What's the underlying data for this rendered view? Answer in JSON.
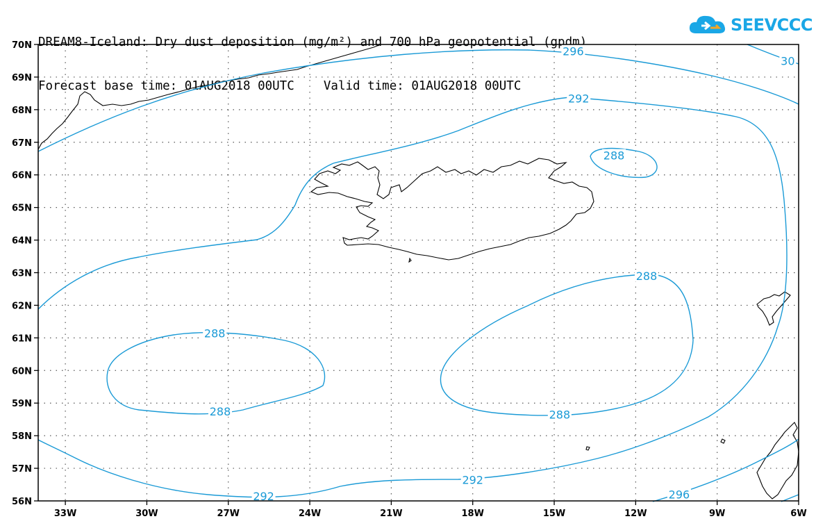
{
  "header": {
    "title_line1": "DREAM8-Iceland: Dry dust deposition (mg/m²) and 700 hPa geopotential (gpdm)",
    "title_line2": "Forecast base time: 01AUG2018 00UTC    Valid time: 01AUG2018 00UTC"
  },
  "logo": {
    "text": "SEEVCCC",
    "icon": "cloud-icon",
    "color": "#1aa7e6"
  },
  "colors": {
    "contour": "#1a9ad6",
    "coastline": "#000000",
    "grid": "#555555"
  },
  "map": {
    "lon_range": [
      -34,
      -6
    ],
    "lat_range": [
      56,
      70
    ],
    "x_ticks": [
      {
        "lon": -33,
        "label": "33W"
      },
      {
        "lon": -30,
        "label": "30W"
      },
      {
        "lon": -27,
        "label": "27W"
      },
      {
        "lon": -24,
        "label": "24W"
      },
      {
        "lon": -21,
        "label": "21W"
      },
      {
        "lon": -18,
        "label": "18W"
      },
      {
        "lon": -15,
        "label": "15W"
      },
      {
        "lon": -12,
        "label": "12W"
      },
      {
        "lon": -9,
        "label": "9W"
      },
      {
        "lon": -6,
        "label": "6W"
      }
    ],
    "y_ticks": [
      {
        "lat": 70,
        "label": "70N"
      },
      {
        "lat": 69,
        "label": "69N"
      },
      {
        "lat": 68,
        "label": "68N"
      },
      {
        "lat": 67,
        "label": "67N"
      },
      {
        "lat": 66,
        "label": "66N"
      },
      {
        "lat": 65,
        "label": "65N"
      },
      {
        "lat": 64,
        "label": "64N"
      },
      {
        "lat": 63,
        "label": "63N"
      },
      {
        "lat": 62,
        "label": "62N"
      },
      {
        "lat": 61,
        "label": "61N"
      },
      {
        "lat": 60,
        "label": "60N"
      },
      {
        "lat": 59,
        "label": "59N"
      },
      {
        "lat": 58,
        "label": "58N"
      },
      {
        "lat": 57,
        "label": "57N"
      },
      {
        "lat": 56,
        "label": "56N"
      }
    ],
    "contour_labels": [
      {
        "text": "296",
        "lon": -14.3,
        "lat": 69.8
      },
      {
        "text": "30",
        "lon": -6.4,
        "lat": 69.5
      },
      {
        "text": "292",
        "lon": -14.1,
        "lat": 68.35
      },
      {
        "text": "288",
        "lon": -12.8,
        "lat": 66.6
      },
      {
        "text": "288",
        "lon": -11.6,
        "lat": 62.9
      },
      {
        "text": "288",
        "lon": -27.5,
        "lat": 61.15
      },
      {
        "text": "288",
        "lon": -27.3,
        "lat": 58.75
      },
      {
        "text": "288",
        "lon": -14.8,
        "lat": 58.65
      },
      {
        "text": "292",
        "lon": -18.0,
        "lat": 56.65
      },
      {
        "text": "292",
        "lon": -25.7,
        "lat": 56.15
      },
      {
        "text": "296",
        "lon": -10.4,
        "lat": 56.2
      }
    ]
  }
}
